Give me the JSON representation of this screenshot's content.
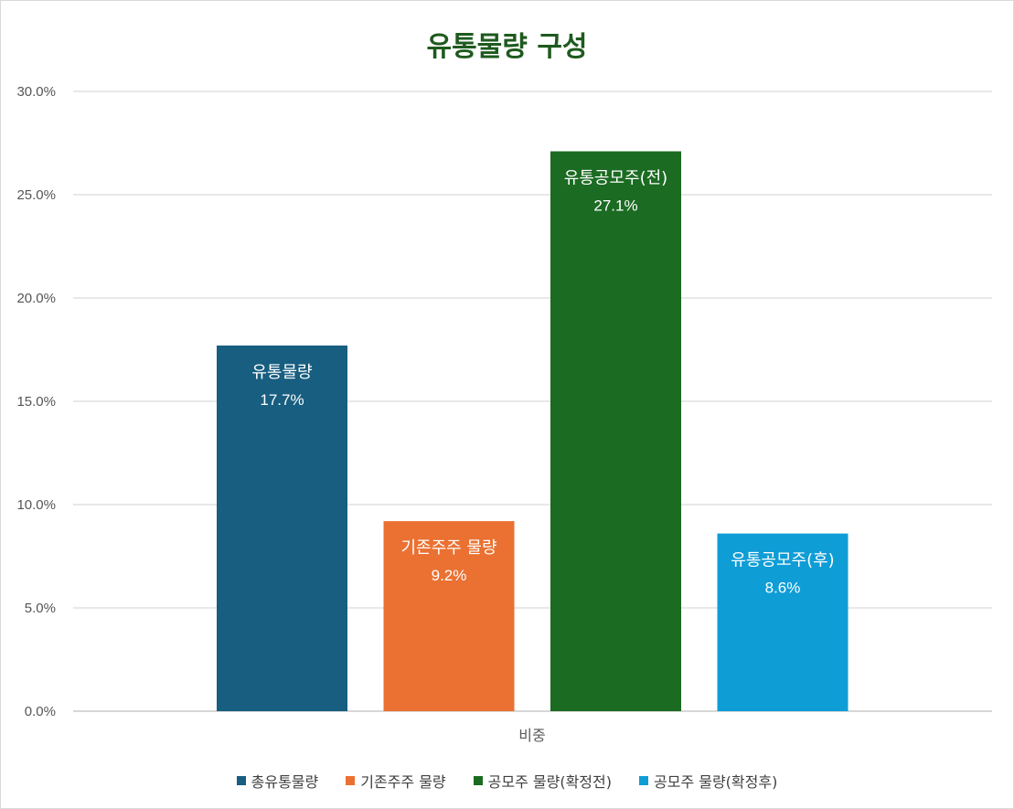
{
  "chart_data": {
    "type": "bar",
    "title": "유통물량 구성",
    "categories": [
      "비중"
    ],
    "ylim": [
      0,
      30
    ],
    "y_ticks": [
      "0.0%",
      "5.0%",
      "10.0%",
      "15.0%",
      "20.0%",
      "25.0%",
      "30.0%"
    ],
    "grid": true,
    "legend_position": "bottom",
    "series": [
      {
        "name": "총유통물량",
        "value": 17.7,
        "label_name": "유통물량",
        "label_value": "17.7%",
        "color": "#175e80"
      },
      {
        "name": "기존주주 물량",
        "value": 9.2,
        "label_name": "기존주주 물량",
        "label_value": "9.2%",
        "color": "#ea7132"
      },
      {
        "name": "공모주 물량(확정전)",
        "value": 27.1,
        "label_name": "유통공모주(전)",
        "label_value": "27.1%",
        "color": "#1b6b22"
      },
      {
        "name": "공모주 물량(확정후)",
        "value": 8.6,
        "label_name": "유통공모주(후)",
        "label_value": "8.6%",
        "color": "#0f9dd6"
      }
    ]
  }
}
